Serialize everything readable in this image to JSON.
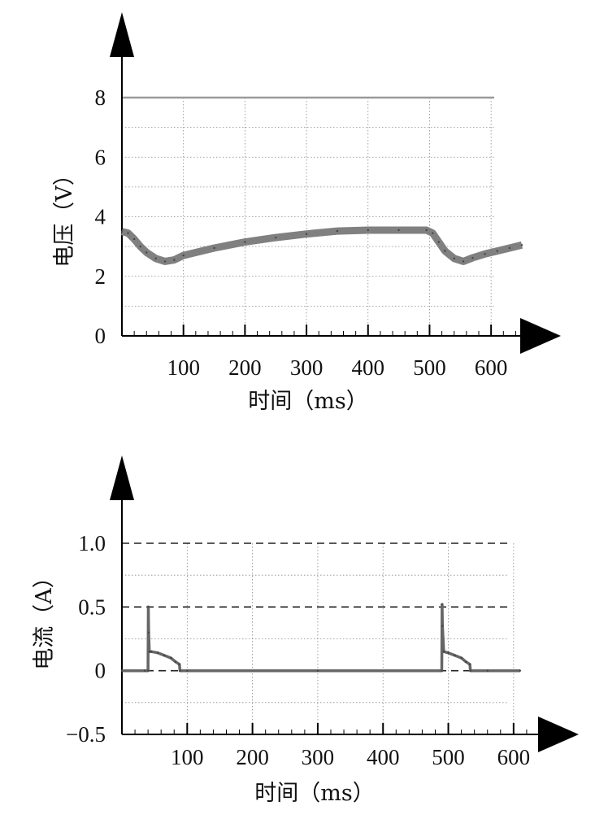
{
  "chart_data": [
    {
      "type": "line",
      "xlabel": "时间（ms）",
      "ylabel": "电压（V）",
      "xlim": [
        0,
        650
      ],
      "ylim": [
        0,
        8
      ],
      "x_ticks": [
        100,
        200,
        300,
        400,
        500,
        600
      ],
      "y_ticks": [
        0,
        2,
        4,
        6,
        8
      ],
      "grid": true,
      "reference_lines": [
        8
      ],
      "series": [
        {
          "x": [
            0,
            10,
            20,
            30,
            40,
            55,
            70,
            85,
            100,
            150,
            200,
            250,
            300,
            350,
            400,
            450,
            495,
            505,
            515,
            525,
            540,
            555,
            570,
            590,
            610,
            630,
            650
          ],
          "y": [
            3.5,
            3.45,
            3.25,
            3.0,
            2.8,
            2.6,
            2.5,
            2.55,
            2.7,
            2.95,
            3.15,
            3.3,
            3.42,
            3.52,
            3.55,
            3.55,
            3.55,
            3.45,
            3.15,
            2.85,
            2.6,
            2.5,
            2.62,
            2.75,
            2.85,
            2.95,
            3.05
          ]
        }
      ]
    },
    {
      "type": "line",
      "xlabel": "时间（ms）",
      "ylabel": "电流（A）",
      "xlim": [
        0,
        650
      ],
      "ylim": [
        -0.5,
        1.0
      ],
      "x_ticks": [
        100,
        200,
        300,
        400,
        500,
        600
      ],
      "y_ticks": [
        -0.5,
        0,
        0.5,
        1.0
      ],
      "y_tick_labels": [
        "−0.5",
        "0",
        "0.5",
        "1.0"
      ],
      "grid": true,
      "reference_lines": [
        1.0,
        0.5,
        0
      ],
      "series": [
        {
          "x": [
            0,
            35,
            40,
            40.5,
            41,
            42,
            45,
            55,
            65,
            75,
            82,
            88,
            89,
            100,
            300,
            490,
            490.5,
            491,
            493,
            500,
            510,
            520,
            527,
            533,
            534,
            560,
            610
          ],
          "y": [
            0,
            0,
            0,
            0.5,
            0.3,
            0.15,
            0.15,
            0.14,
            0.12,
            0.1,
            0.07,
            0.05,
            0,
            0,
            0,
            0,
            0.52,
            0.35,
            0.15,
            0.14,
            0.12,
            0.1,
            0.07,
            0.05,
            0,
            0,
            0
          ]
        }
      ]
    }
  ]
}
